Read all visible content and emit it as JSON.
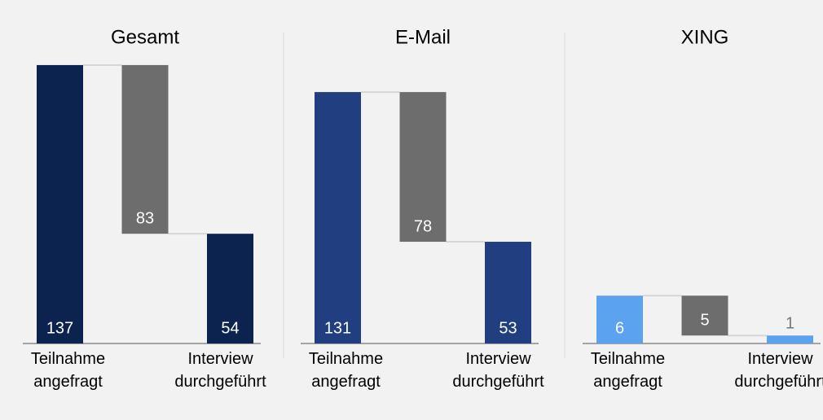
{
  "chart_data": [
    {
      "type": "waterfall",
      "title": "Gesamt",
      "categories": [
        "Teilnahme angefragt",
        null,
        "Interview durchgeführt"
      ],
      "values": [
        137,
        83,
        54
      ],
      "colors": [
        "#0c2350",
        "#6d6d6d",
        "#0c2350"
      ],
      "ylim": [
        0,
        153
      ]
    },
    {
      "type": "waterfall",
      "title": "E-Mail",
      "categories": [
        "Teilnahme angefragt",
        null,
        "Interview durchgeführt"
      ],
      "values": [
        131,
        78,
        53
      ],
      "colors": [
        "#213f80",
        "#6d6d6d",
        "#213f80"
      ],
      "ylim": [
        0,
        162
      ]
    },
    {
      "type": "waterfall",
      "title": "XING",
      "categories": [
        "Teilnahme angefragt",
        null,
        "Interview durchgeführt"
      ],
      "values": [
        6,
        5,
        1
      ],
      "colors": [
        "#5ba3ef",
        "#6d6d6d",
        "#5ba3ef"
      ],
      "ylim": [
        0,
        39
      ]
    }
  ]
}
